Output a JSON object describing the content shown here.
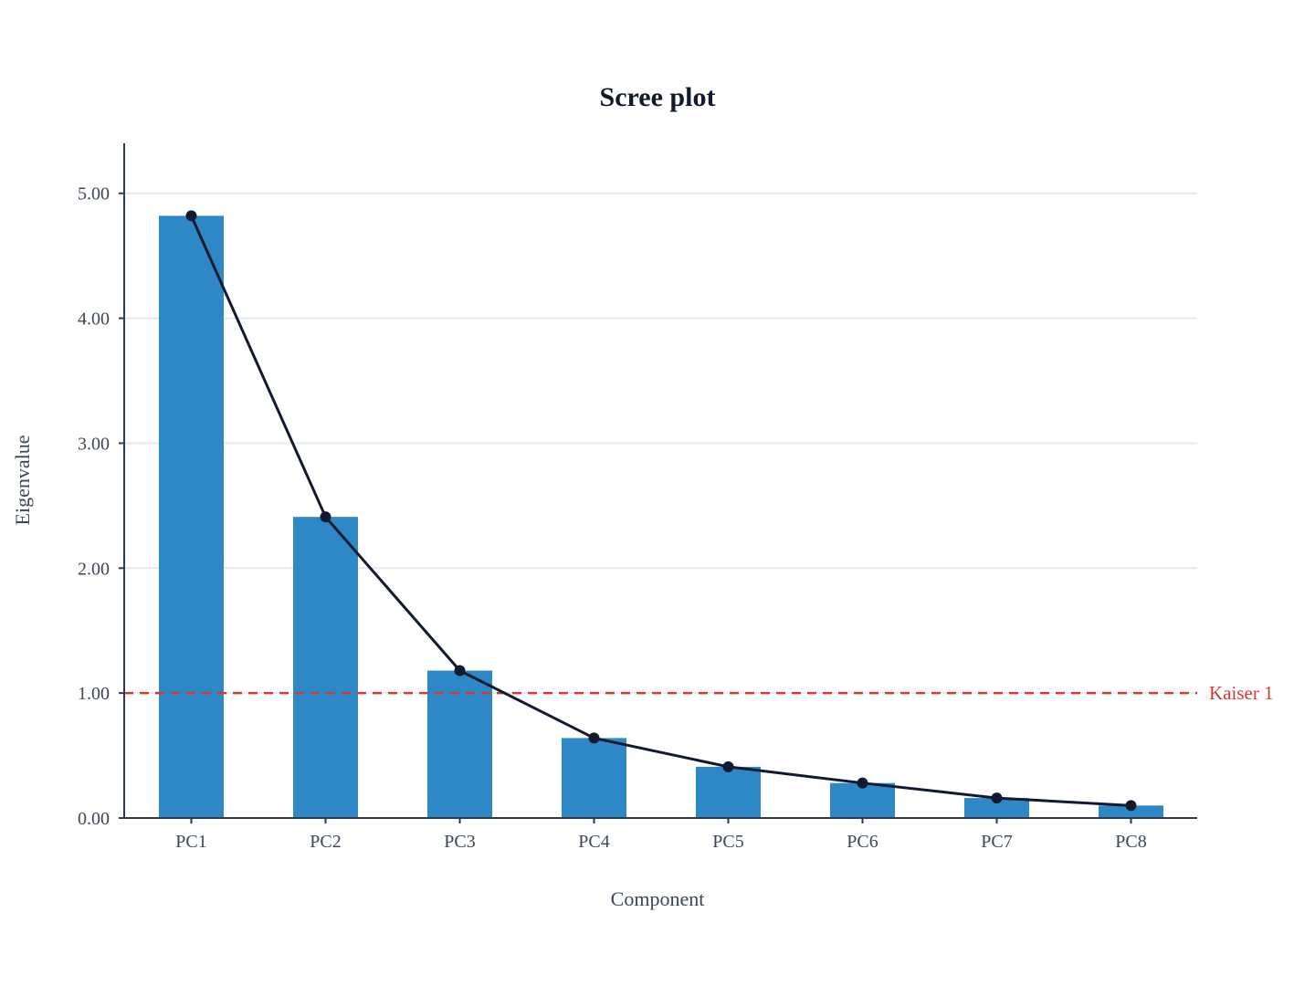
{
  "chart_data": {
    "type": "bar",
    "title": "Scree plot",
    "xlabel": "Component",
    "ylabel": "Eigenvalue",
    "categories": [
      "PC1",
      "PC2",
      "PC3",
      "PC4",
      "PC5",
      "PC6",
      "PC7",
      "PC8"
    ],
    "values": [
      4.82,
      2.41,
      1.18,
      0.64,
      0.41,
      0.28,
      0.16,
      0.1
    ],
    "line_overlay": {
      "values": [
        4.82,
        2.41,
        1.18,
        0.64,
        0.41,
        0.28,
        0.16,
        0.1
      ],
      "markers": true
    },
    "reference_line": {
      "y": 1.0,
      "label": "Kaiser 1",
      "style": "dashed"
    },
    "ylim": [
      0,
      5.4
    ],
    "yticks": [
      0,
      1,
      2,
      3,
      4,
      5
    ],
    "ytick_labels": [
      "0.00",
      "1.00",
      "2.00",
      "3.00",
      "4.00",
      "5.00"
    ],
    "grid": true,
    "colors": {
      "bar": "#2e88c5",
      "line": "#111a2e",
      "reference": "#d33a34",
      "grid": "#e3e9ef",
      "axis": "#2c3a4d",
      "text": "#3b4758",
      "title": "#111a2e"
    }
  }
}
